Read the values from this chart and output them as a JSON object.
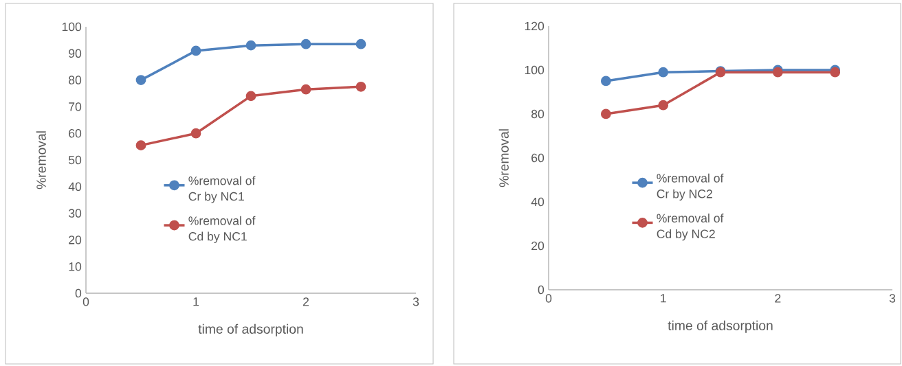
{
  "chart_data": [
    {
      "type": "line",
      "xlabel": "time of adsorption",
      "ylabel": "%removal",
      "x": [
        0.5,
        1,
        1.5,
        2,
        2.5
      ],
      "xlim": [
        0,
        3
      ],
      "ylim": [
        0,
        100
      ],
      "xticks": [
        0,
        1,
        2,
        3
      ],
      "yticks": [
        0,
        10,
        20,
        30,
        40,
        50,
        60,
        70,
        80,
        90,
        100
      ],
      "legend": "center",
      "marker": "circle",
      "series": [
        {
          "name": "%removal of Cr by NC1",
          "color": "#4f81bd",
          "values": [
            80,
            91,
            93,
            93.5,
            93.5
          ]
        },
        {
          "name": "%removal of Cd by NC1",
          "color": "#c0504d",
          "values": [
            55.5,
            60,
            74,
            76.5,
            77.5
          ]
        }
      ]
    },
    {
      "type": "line",
      "xlabel": "time of adsorption",
      "ylabel": "%removal",
      "x": [
        0.5,
        1,
        1.5,
        2,
        2.5
      ],
      "xlim": [
        0,
        3
      ],
      "ylim": [
        0,
        120
      ],
      "xticks": [
        0,
        1,
        2,
        3
      ],
      "yticks": [
        0,
        20,
        40,
        60,
        80,
        100,
        120
      ],
      "legend": "center",
      "marker": "circle",
      "series": [
        {
          "name": "%removal of Cr by NC2",
          "color": "#4f81bd",
          "values": [
            95,
            99,
            99.5,
            100,
            100
          ]
        },
        {
          "name": "%removal of Cd by NC2",
          "color": "#c0504d",
          "values": [
            80,
            84,
            99,
            99,
            99
          ]
        }
      ]
    }
  ]
}
